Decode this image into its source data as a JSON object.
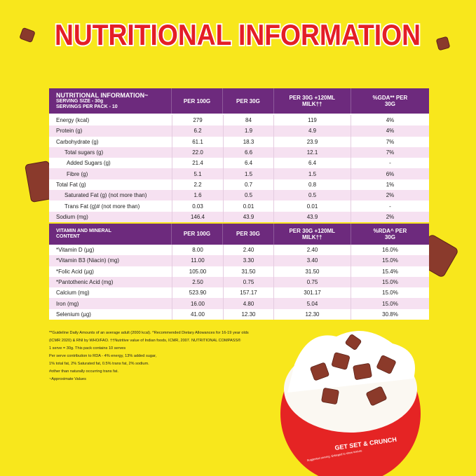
{
  "title": "NUTRITIONAL INFORMATION",
  "table1": {
    "header": {
      "label": "NUTRITIONAL INFORMATION~",
      "serving_size": "SERVING SIZE - 30g",
      "servings": "SERVINGS PER PACK - 10",
      "columns": [
        "PER 100G",
        "PER 30G",
        "PER 30G +120ML MILK††",
        "%GDA** PER 30G"
      ]
    },
    "rows": [
      [
        "Energy (kcal)",
        "279",
        "84",
        "119",
        "4%"
      ],
      [
        "Protein (g)",
        "6.2",
        "1.9",
        "4.9",
        "4%"
      ],
      [
        "Carbohydrate (g)",
        "61.1",
        "18.3",
        "23.9",
        "7%"
      ],
      [
        "Total sugars (g)",
        "22.0",
        "6.6",
        "12.1",
        "7%"
      ],
      [
        "Added Sugars (g)",
        "21.4",
        "6.4",
        "6.4",
        "-"
      ],
      [
        "Fibre (g)",
        "5.1",
        "1.5",
        "1.5",
        "6%"
      ],
      [
        "Total Fat (g)",
        "2.2",
        "0.7",
        "0.8",
        "1%"
      ],
      [
        "Saturated Fat (g) (not more than)",
        "1.6",
        "0.5",
        "0.5",
        "2%"
      ],
      [
        "Trans Fat (g)# (not more than)",
        "0.03",
        "0.01",
        "0.01",
        "-"
      ],
      [
        "Sodium (mg)",
        "146.4",
        "43.9",
        "43.9",
        "2%"
      ]
    ]
  },
  "table2": {
    "header": {
      "label": "VITAMIN AND MINERAL CONTENT",
      "columns": [
        "PER 100G",
        "PER 30G",
        "PER 30G +120ML MILK††",
        "%RDA^ PER 30G"
      ]
    },
    "rows": [
      [
        "*Vitamin D (µg)",
        "8.00",
        "2.40",
        "2.40",
        "16.0%"
      ],
      [
        "*Vitamin B3 (Niacin) (mg)",
        "11.00",
        "3.30",
        "3.40",
        "15.0%"
      ],
      [
        "*Folic Acid (µg)",
        "105.00",
        "31.50",
        "31.50",
        "15.4%"
      ],
      [
        "*Pantothenic Acid (mg)",
        "2.50",
        "0.75",
        "0.75",
        "15.0%"
      ],
      [
        "Calcium (mg)",
        "523.90",
        "157.17",
        "301.17",
        "15.0%"
      ],
      [
        "Iron (mg)",
        "16.00",
        "4.80",
        "5.04",
        "15.0%"
      ],
      [
        "Selenium (µg)",
        "41.00",
        "12.30",
        "12.30",
        "30.8%"
      ]
    ]
  },
  "footnotes": [
    "**Guideline Daily Amounts of an average adult (2000 kcal). ^Recommended Dietary Allowances for 16-19 year olds",
    "(ICMR 2020) & RNI by WHO/FAO. ††Nutritive value of Indian foods, ICMR, 2007. NUTRITIONAL COMPASS®",
    "1 serve = 30g. This pack contains 10 serves",
    "Per serve contribution to RDA - 4% energy, 13% added sugar,",
    "1% total fat, 2% Saturated fat, 0.5% trans fat, 2% sodium.",
    "#other than naturally occurring trans fat.",
    "~Approximate Values"
  ],
  "bowl": {
    "slogan": "GET SET & CRUNCH",
    "caption": "Suggested serving. Enlarged to show texture."
  }
}
